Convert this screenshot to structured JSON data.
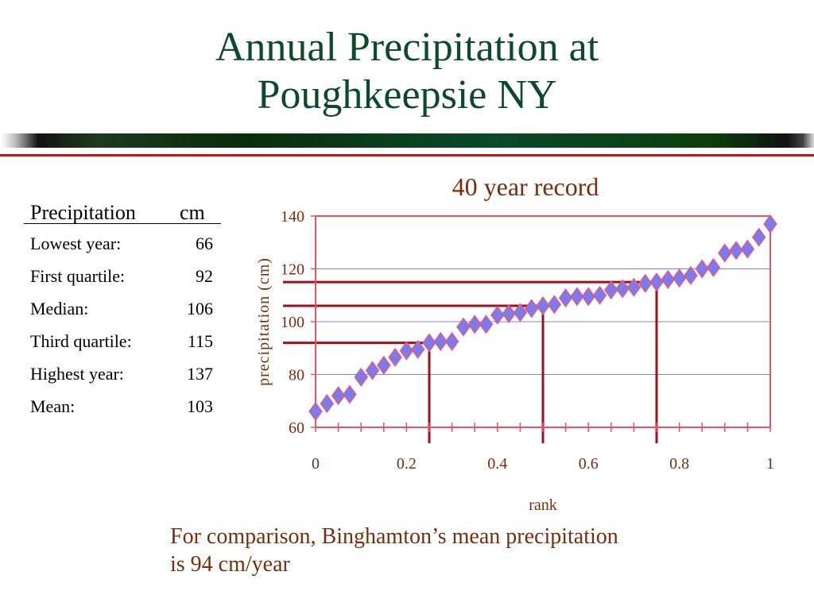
{
  "slide": {
    "title_line1": "Annual Precipitation at",
    "title_line2": "Poughkeepsie NY",
    "colors": {
      "title": "#0b4a2a",
      "accent_rule": "#c0141a",
      "note_text": "#7a2d0a"
    }
  },
  "stats": {
    "heading_label": "Precipitation",
    "heading_unit": "cm",
    "rows": [
      {
        "label": "Lowest year:",
        "value": "66"
      },
      {
        "label": "First quartile:",
        "value": "92"
      },
      {
        "label": "Median:",
        "value": "106"
      },
      {
        "label": "Third quartile:",
        "value": "115"
      },
      {
        "label": "Highest year:",
        "value": "137"
      },
      {
        "label": "Mean:",
        "value": "103"
      }
    ]
  },
  "note": {
    "line1": "For comparison, Binghamton’s mean precipitation",
    "line2": "is 94 cm/year"
  },
  "chart_data": {
    "type": "scatter",
    "title": "40 year record",
    "xlabel": "rank",
    "ylabel": "precipitation  (cm)",
    "xlim": [
      0,
      1
    ],
    "ylim": [
      60,
      140
    ],
    "x_ticks": [
      "0",
      "0.2",
      "0.4",
      "0.6",
      "0.8",
      "1"
    ],
    "y_ticks": [
      "60",
      "80",
      "100",
      "120",
      "140"
    ],
    "grid": "horizontal",
    "legend": "none",
    "series": [
      {
        "marker": "diamond",
        "color": "#7b7bf0",
        "edge_color": "#ff5060",
        "points": [
          [
            0.0,
            66
          ],
          [
            0.025,
            69
          ],
          [
            0.05,
            72
          ],
          [
            0.075,
            72.5
          ],
          [
            0.1,
            79
          ],
          [
            0.125,
            81.5
          ],
          [
            0.15,
            83.5
          ],
          [
            0.175,
            86.5
          ],
          [
            0.2,
            89
          ],
          [
            0.225,
            89.5
          ],
          [
            0.25,
            92
          ],
          [
            0.275,
            92.5
          ],
          [
            0.3,
            92.5
          ],
          [
            0.325,
            98
          ],
          [
            0.35,
            99
          ],
          [
            0.375,
            99
          ],
          [
            0.4,
            102.5
          ],
          [
            0.425,
            103
          ],
          [
            0.45,
            103.5
          ],
          [
            0.475,
            105
          ],
          [
            0.5,
            106
          ],
          [
            0.525,
            106.5
          ],
          [
            0.55,
            109
          ],
          [
            0.575,
            109.5
          ],
          [
            0.6,
            109.5
          ],
          [
            0.625,
            110
          ],
          [
            0.65,
            112
          ],
          [
            0.675,
            112.5
          ],
          [
            0.7,
            113
          ],
          [
            0.725,
            114.5
          ],
          [
            0.75,
            115
          ],
          [
            0.775,
            116
          ],
          [
            0.8,
            116.5
          ],
          [
            0.825,
            117.5
          ],
          [
            0.85,
            120
          ],
          [
            0.875,
            120.5
          ],
          [
            0.9,
            126
          ],
          [
            0.925,
            127
          ],
          [
            0.95,
            127.5
          ],
          [
            0.975,
            132
          ],
          [
            1.0,
            137
          ]
        ]
      }
    ],
    "quartile_guides": [
      {
        "x": 0.25,
        "y": 92
      },
      {
        "x": 0.5,
        "y": 106
      },
      {
        "x": 0.75,
        "y": 115
      }
    ],
    "colors": {
      "plot_border": "#f05060",
      "gridline": "#8080e8",
      "guide": "#a01018"
    }
  }
}
